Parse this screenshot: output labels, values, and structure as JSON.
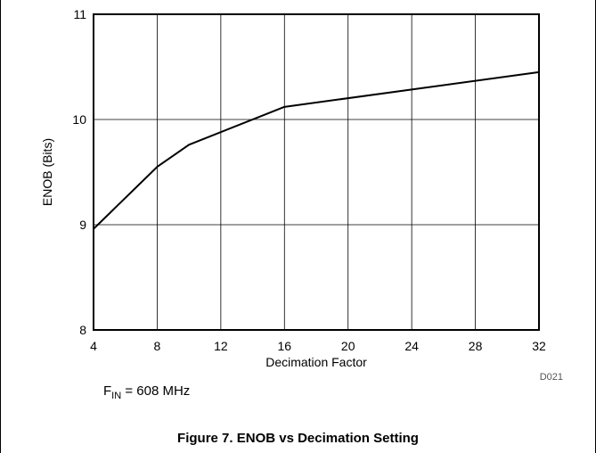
{
  "chart_data": {
    "type": "line",
    "x_axis_title": "Decimation Factor",
    "y_axis_title": "ENOB (Bits)",
    "x_ticks": [
      4,
      8,
      12,
      16,
      20,
      24,
      28,
      32
    ],
    "y_ticks": [
      8,
      9,
      10,
      11
    ],
    "xlim": [
      4,
      32
    ],
    "ylim": [
      8,
      11
    ],
    "grid": true,
    "series": [
      {
        "color": "#000000",
        "x": [
          4,
          8,
          10,
          16,
          32
        ],
        "y": [
          8.96,
          9.55,
          9.76,
          10.12,
          10.45
        ]
      }
    ]
  },
  "graph_code": "D021",
  "condition": {
    "symbol": "F",
    "subscript": "IN",
    "value": " = 608 MHz"
  },
  "caption": "Figure 7. ENOB vs Decimation Setting"
}
